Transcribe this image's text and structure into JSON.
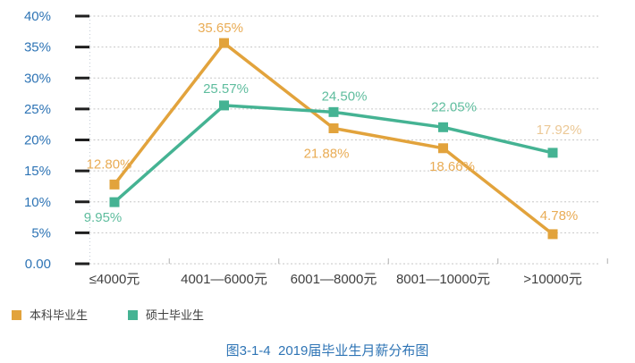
{
  "caption": {
    "text": "图3-1-4  2019届毕业生月薪分布图",
    "color": "#2E74B5"
  },
  "legend": [
    {
      "label": "本科毕业生",
      "color": "#E2A33C"
    },
    {
      "label": "硕士毕业生",
      "color": "#45B393"
    }
  ],
  "chart_data": {
    "type": "line",
    "title": "2019届毕业生月薪分布图",
    "categories": [
      "≤4000元",
      "4001—6000元",
      "6001—8000元",
      "8001—10000元",
      ">10000元"
    ],
    "series": [
      {
        "name": "本科毕业生",
        "color": "#E2A33C",
        "label_color": "#E9AC55",
        "values": [
          12.8,
          35.65,
          21.88,
          18.66,
          4.78
        ],
        "data_labels": [
          "12.80%",
          "35.65%",
          "21.88%",
          "18.66%",
          "4.78%"
        ],
        "label_offsets": [
          {
            "dx": -6,
            "dy": -18
          },
          {
            "dx": -4,
            "dy": -12
          },
          {
            "dx": -8,
            "dy": 33
          },
          {
            "dx": 10,
            "dy": 25
          },
          {
            "dx": 7,
            "dy": -16
          }
        ]
      },
      {
        "name": "硕士毕业生",
        "color": "#45B393",
        "label_color": "#5FBD9E",
        "values": [
          9.95,
          25.57,
          24.5,
          22.05,
          17.92
        ],
        "data_labels": [
          "9.95%",
          "25.57%",
          "24.50%",
          "22.05%",
          "17.92%"
        ],
        "label_color_overrides": {
          "4": "#EBC896"
        },
        "label_offsets": [
          {
            "dx": -13,
            "dy": 22
          },
          {
            "dx": 2,
            "dy": -14
          },
          {
            "dx": 12,
            "dy": -13
          },
          {
            "dx": 12,
            "dy": -18
          },
          {
            "dx": 7,
            "dy": -21
          }
        ]
      }
    ],
    "y_ticks": [
      "40%",
      "35%",
      "30%",
      "25%",
      "20%",
      "15%",
      "10%",
      "5%",
      "0.00"
    ],
    "y_tick_values": [
      40,
      35,
      30,
      25,
      20,
      15,
      10,
      5,
      0
    ],
    "ylim": [
      0,
      40
    ],
    "grid": "horizontal-dashed",
    "legend_position": "bottom-left",
    "colors": {
      "y_axis_label": "#2E74B5",
      "x_axis_label": "#3F3F3F",
      "gridline": "#C6C6C6",
      "axis_dotted": "#C3CBD6",
      "tick_mark": "#1F1F1F",
      "x_boundary_tick": "#AFAFAF"
    }
  }
}
